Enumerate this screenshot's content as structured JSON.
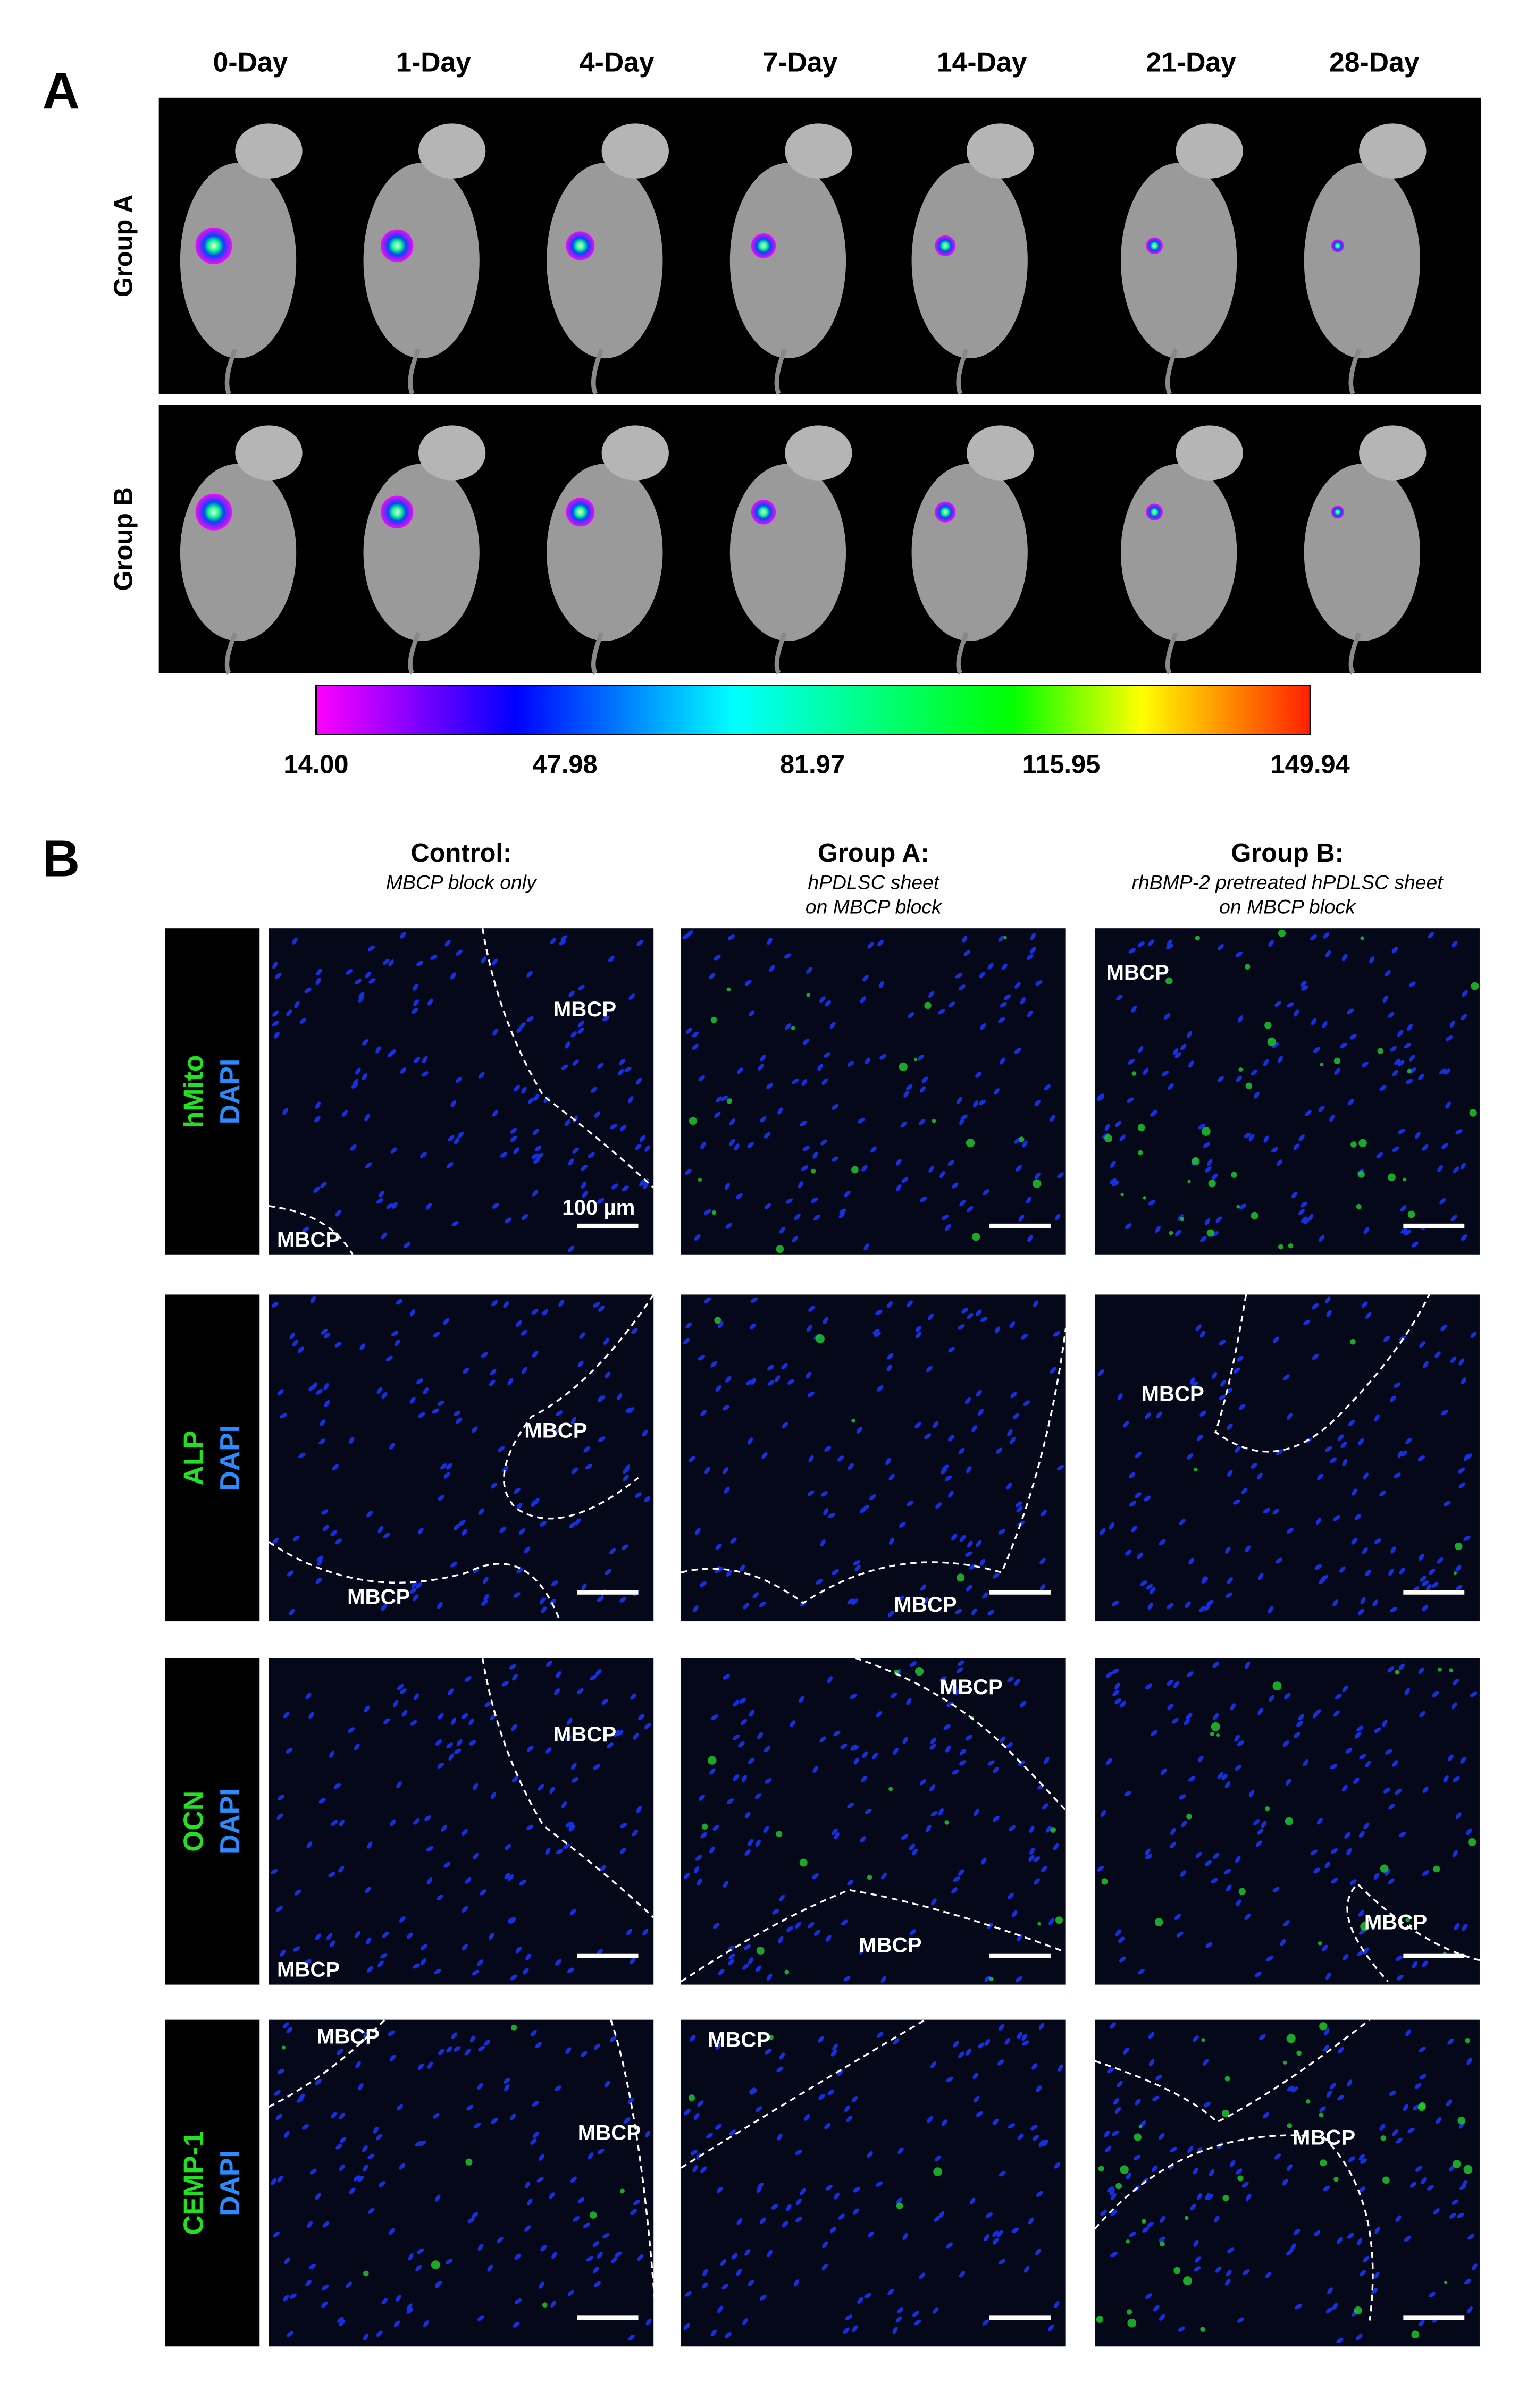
{
  "panel_a": {
    "label": "A",
    "days": [
      "0-Day",
      "1-Day",
      "4-Day",
      "7-Day",
      "14-Day",
      "21-Day",
      "28-Day"
    ],
    "groups": [
      "Group A",
      "Group B"
    ],
    "colorbar": {
      "ticks": [
        "14.00",
        "47.98",
        "81.97",
        "115.95",
        "149.94"
      ]
    }
  },
  "panel_b": {
    "label": "B",
    "columns": [
      {
        "title": "Control:",
        "subtitle": [
          "MBCP block only"
        ]
      },
      {
        "title": "Group A:",
        "subtitle": [
          "hPDLSC sheet",
          "on MBCP block"
        ]
      },
      {
        "title": "Group B:",
        "subtitle": [
          "rhBMP-2 pretreated hPDLSC sheet",
          "on MBCP block"
        ]
      }
    ],
    "rows": [
      {
        "marker": "hMito",
        "counterstain": "DAPI",
        "panels": [
          [
            "MBCP",
            "MBCP",
            "100 µm"
          ],
          [],
          [
            "MBCP"
          ]
        ]
      },
      {
        "marker": "ALP",
        "counterstain": "DAPI",
        "panels": [
          [
            "MBCP",
            "MBCP"
          ],
          [
            "MBCP"
          ],
          [
            "MBCP"
          ]
        ]
      },
      {
        "marker": "OCN",
        "counterstain": "DAPI",
        "panels": [
          [
            "MBCP",
            "MBCP"
          ],
          [
            "MBCP",
            "MBCP"
          ],
          [
            "MBCP"
          ]
        ]
      },
      {
        "marker": "CEMP-1",
        "counterstain": "DAPI",
        "panels": [
          [
            "MBCP",
            "MBCP"
          ],
          [
            "MBCP"
          ],
          [
            "MBCP"
          ]
        ]
      }
    ]
  }
}
